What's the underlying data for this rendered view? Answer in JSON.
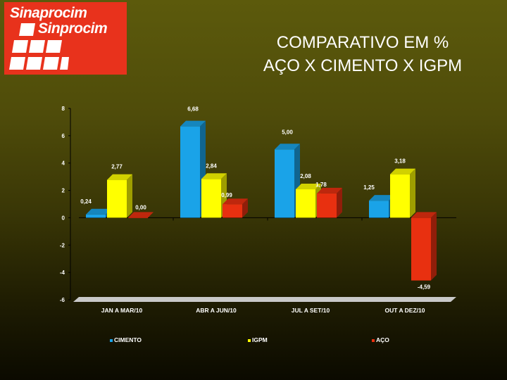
{
  "logo": {
    "line1": "Sinaprocim",
    "line2": "Sinprocim"
  },
  "title": {
    "line1": "COMPARATIVO EM %",
    "line2": "AÇO X CIMENTO X IGPM"
  },
  "chart_data": {
    "type": "bar",
    "title": "COMPARATIVO EM % AÇO X CIMENTO X IGPM",
    "categories": [
      "JAN A MAR/10",
      "ABR A JUN/10",
      "JUL A SET/10",
      "OUT A DEZ/10"
    ],
    "series": [
      {
        "name": "CIMENTO",
        "color": "#1aa3e8",
        "values": [
          0.24,
          6.68,
          5.0,
          1.25
        ],
        "labels": [
          "0,24",
          "6,68",
          "5,00",
          "1,25"
        ]
      },
      {
        "name": "IGPM",
        "color": "#ffff00",
        "values": [
          2.77,
          2.84,
          2.08,
          3.18
        ],
        "labels": [
          "2,77",
          "2,84",
          "2,08",
          "3,18"
        ]
      },
      {
        "name": "AÇO",
        "color": "#e83010",
        "values": [
          0.0,
          0.99,
          1.78,
          -4.59
        ],
        "labels": [
          "0,00",
          "0,99",
          "1,78",
          "-4,59"
        ]
      }
    ],
    "ylim": [
      -6,
      8
    ],
    "yticks": [
      8,
      6,
      4,
      2,
      0,
      -2,
      -4,
      -6
    ],
    "legend_position": "bottom",
    "grid": false
  }
}
